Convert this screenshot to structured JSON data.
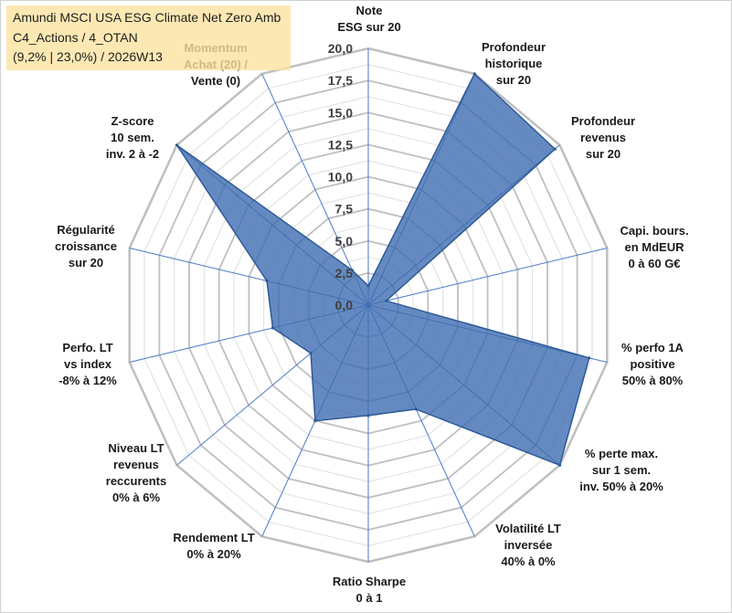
{
  "chart_data": {
    "type": "radar",
    "title": [
      "Amundi MSCI USA ESG Climate Net Zero Amb",
      "C4_Actions / 4_OTAN",
      "(9,2% | 23,0%) / 2026W13"
    ],
    "categories": [
      "Note\nESG sur 20",
      "Profondeur\nhistorique\nsur 20",
      "Profondeur\nrevenus\nsur 20",
      "Capi. bours.\nen MdEUR\n0 à 60 G€",
      "% perfo 1A\npositive\n50% à 80%",
      "% perte max.\nsur 1 sem.\ninv. 50% à 20%",
      "Volatilité LT\ninversée\n40% à 0%",
      "Ratio Sharpe\n0 à 1",
      "Rendement LT\n0% à 20%",
      "Niveau LT\nrevenus\nreccurents\n0% à 6%",
      "Perfo. LT\nvs index\n-8% à 12%",
      "Régularité\ncroissance\nsur 20",
      "Z-score\n10 sem.\ninv. 2 à -2",
      "Momentum\nAchat (20) /\nVente (0)"
    ],
    "values": [
      1.5,
      20,
      19.5,
      1.5,
      18.5,
      20,
      9,
      8.6,
      10,
      6,
      8,
      8.5,
      20,
      3
    ],
    "rlim": [
      0,
      20
    ],
    "major_step": 2.5,
    "minor_step": 1.25,
    "tick_labels": [
      "0,0",
      "2,5",
      "5,0",
      "7,5",
      "10,0",
      "12,5",
      "15,0",
      "17,5",
      "20,0"
    ],
    "grid": true,
    "colors": {
      "series_fill": "#3f6db2",
      "series_stroke": "#2d5a98",
      "spokes": "#4a7ac8",
      "grid_major": "#bfbfbf",
      "grid_minor": "#dedede",
      "title_box": "#fbe2a0"
    }
  }
}
